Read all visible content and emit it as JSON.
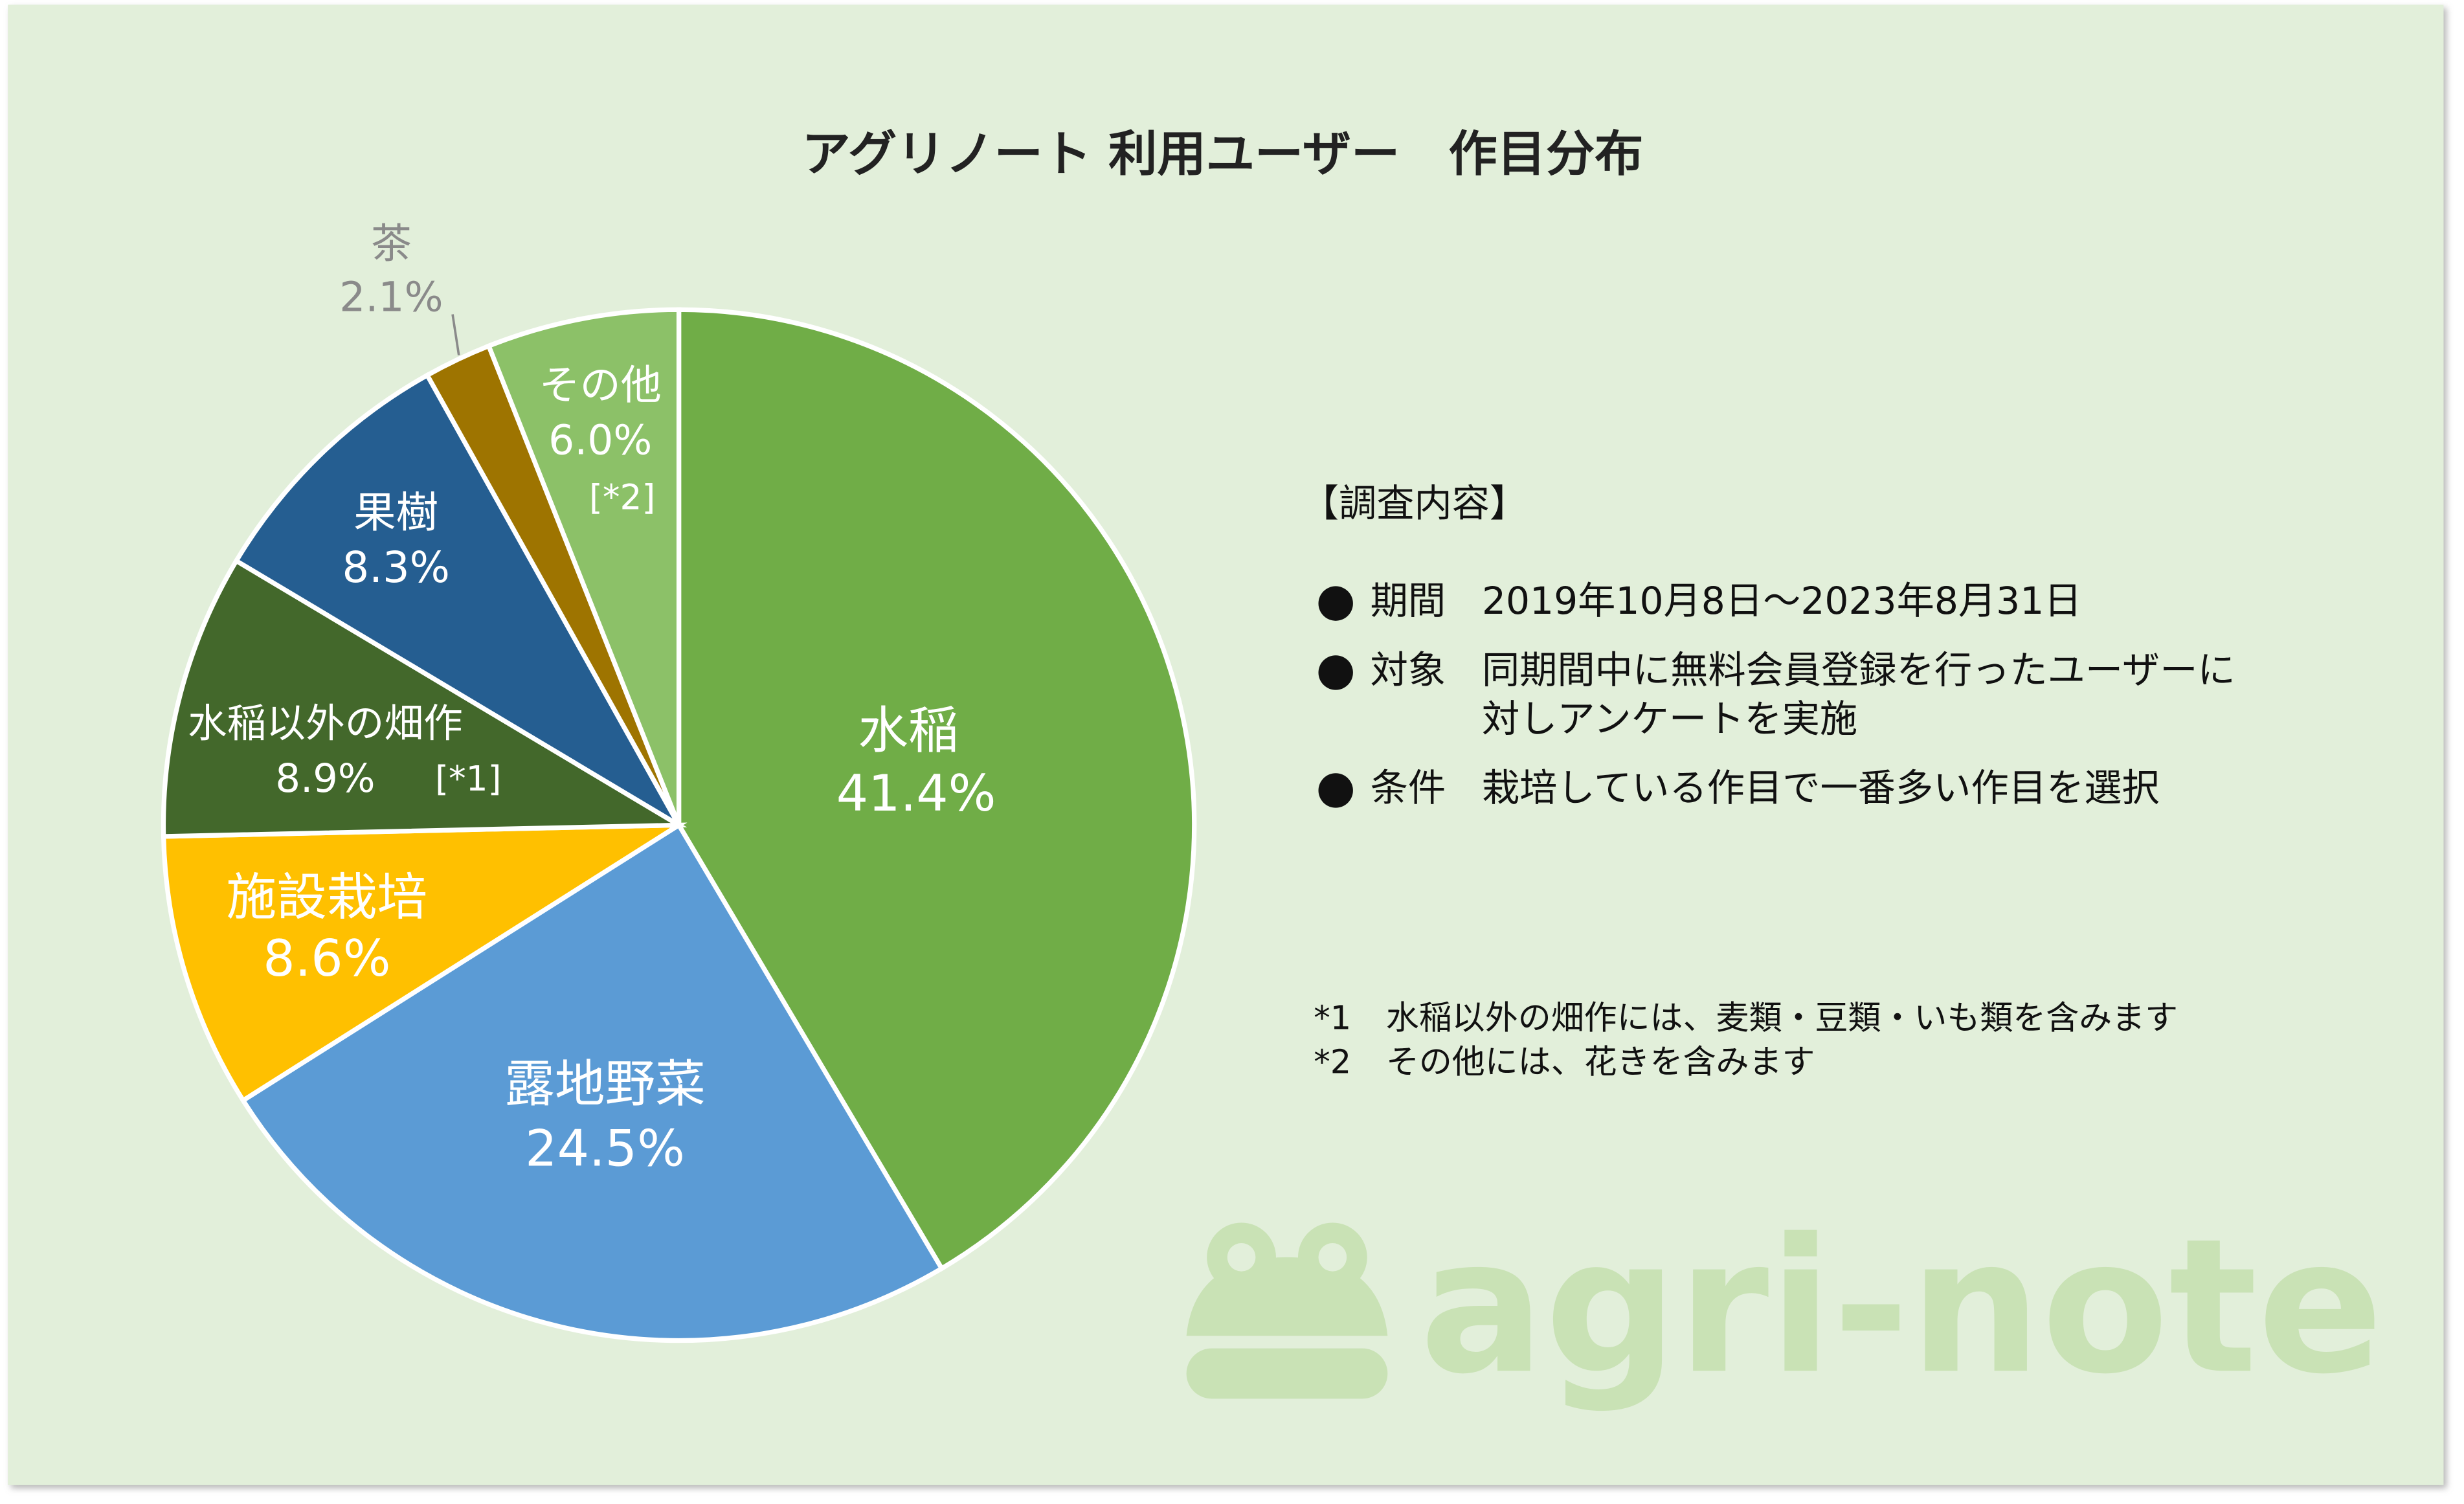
{
  "chart_data": {
    "type": "pie",
    "title": "アグリノート 利用ユーザー　作目分布",
    "categories": [
      "水稲",
      "露地野菜",
      "施設栽培",
      "水稲以外の畑作",
      "果樹",
      "茶",
      "その他"
    ],
    "values": [
      41.4,
      24.5,
      8.6,
      8.9,
      8.3,
      2.1,
      6.0
    ],
    "value_labels": [
      "41.4%",
      "24.5%",
      "8.6%",
      "8.9%",
      "8.3%",
      "2.1%",
      "6.0%"
    ],
    "category_notes": [
      null,
      null,
      null,
      "[*1]",
      null,
      null,
      "[*2]"
    ],
    "colors": [
      "#70ad47",
      "#5b9bd5",
      "#ffc000",
      "#43682b",
      "#255e91",
      "#9e7400",
      "#8cc168"
    ]
  },
  "info": {
    "heading": "【調査内容】",
    "items": [
      {
        "label": "期間",
        "text": [
          "2019年10月8日～2023年8月31日"
        ]
      },
      {
        "label": "対象",
        "text": [
          "同期間中に無料会員登録を行ったユーザーに",
          "対しアンケートを実施"
        ]
      },
      {
        "label": "条件",
        "text": [
          "栽培している作目で一番多い作目を選択"
        ]
      }
    ],
    "footnotes": [
      {
        "mark": "*1",
        "text": "水稲以外の畑作には、麦類・豆類・いも類を含みます"
      },
      {
        "mark": "*2",
        "text": "その他には、花きを含みます"
      }
    ]
  },
  "watermark": "agri-note"
}
